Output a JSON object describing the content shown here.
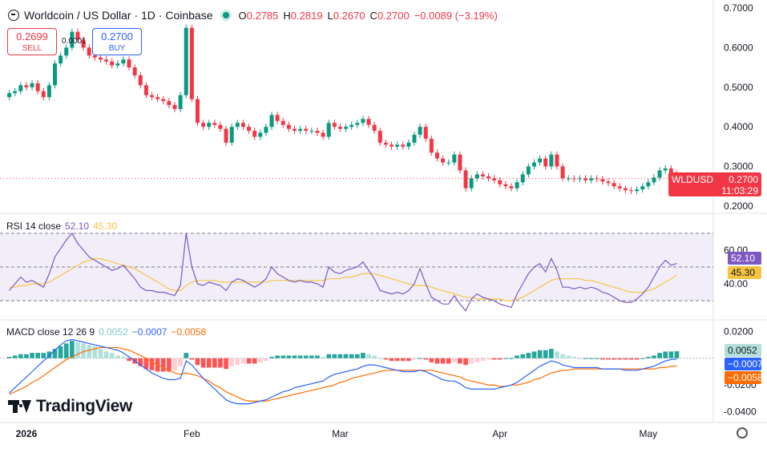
{
  "header": {
    "title": "Worldcoin / US Dollar · 1D · Coinbase",
    "open_label": "O",
    "open": "0.2785",
    "high_label": "H",
    "high": "0.2819",
    "low_label": "L",
    "low": "0.2670",
    "close_label": "C",
    "close": "0.2700",
    "change": "−0.0089 (−3.19%)"
  },
  "trade": {
    "sell_price": "0.2699",
    "sell_label": "SELL",
    "spread": "0.0001",
    "buy_price": "0.2700",
    "buy_label": "BUY"
  },
  "price_scale": {
    "symbol": "WLDUSD",
    "last_price": "0.2700",
    "countdown": "11:03:29"
  },
  "rsi_legend": {
    "name": "RSI 14 close",
    "value": "52.10",
    "ma": "45.30"
  },
  "macd_legend": {
    "name": "MACD close 12 26 9",
    "hist": "0.0052",
    "macd": "−0.0007",
    "signal": "−0.0058"
  },
  "branding": {
    "name": "TradingView"
  },
  "colors": {
    "up": "#089981",
    "down": "#f23645",
    "rsi": "#7e57c2",
    "rsi_ma": "#f5c542",
    "macd": "#2962ff",
    "signal": "#ff6d00"
  },
  "icons": {
    "settings": "gear-icon"
  },
  "chart_data": [
    {
      "type": "candlestick",
      "title": "Worldcoin / US Dollar · 1D · Coinbase",
      "ylim": [
        0.2,
        0.7
      ],
      "y_ticks": [
        "0.7000",
        "0.6000",
        "0.5000",
        "0.4000",
        "0.3000",
        "0.2000"
      ],
      "x_ticks": [
        "2026",
        "Feb",
        "Mar",
        "Apr",
        "May"
      ],
      "close": [
        0.485,
        0.49,
        0.505,
        0.5,
        0.51,
        0.49,
        0.475,
        0.505,
        0.56,
        0.58,
        0.6,
        0.64,
        0.62,
        0.6,
        0.58,
        0.575,
        0.57,
        0.565,
        0.555,
        0.56,
        0.57,
        0.55,
        0.53,
        0.505,
        0.48,
        0.475,
        0.47,
        0.465,
        0.455,
        0.445,
        0.48,
        0.65,
        0.47,
        0.41,
        0.4,
        0.41,
        0.405,
        0.395,
        0.36,
        0.4,
        0.41,
        0.4,
        0.39,
        0.375,
        0.385,
        0.4,
        0.43,
        0.415,
        0.405,
        0.395,
        0.39,
        0.395,
        0.39,
        0.39,
        0.385,
        0.375,
        0.41,
        0.4,
        0.395,
        0.4,
        0.405,
        0.41,
        0.42,
        0.405,
        0.39,
        0.36,
        0.355,
        0.35,
        0.355,
        0.35,
        0.36,
        0.38,
        0.4,
        0.37,
        0.335,
        0.32,
        0.31,
        0.31,
        0.33,
        0.29,
        0.245,
        0.27,
        0.28,
        0.275,
        0.27,
        0.265,
        0.255,
        0.25,
        0.245,
        0.26,
        0.28,
        0.3,
        0.31,
        0.32,
        0.3,
        0.33,
        0.3,
        0.27,
        0.27,
        0.268,
        0.27,
        0.265,
        0.27,
        0.268,
        0.262,
        0.258,
        0.25,
        0.245,
        0.24,
        0.238,
        0.242,
        0.25,
        0.26,
        0.272,
        0.29,
        0.295,
        0.282,
        0.27
      ]
    },
    {
      "type": "line",
      "title": "RSI 14 close",
      "ylim": [
        20,
        80
      ],
      "y_ticks": [
        "60.00",
        "40.00"
      ],
      "series": [
        {
          "name": "RSI",
          "values": [
            36,
            40,
            44,
            41,
            42,
            40,
            38,
            46,
            56,
            61,
            66,
            70,
            64,
            60,
            56,
            54,
            52,
            50,
            48,
            49,
            51,
            47,
            43,
            38,
            36,
            36,
            35,
            35,
            34,
            33,
            39,
            70,
            50,
            40,
            39,
            41,
            40,
            39,
            36,
            41,
            43,
            42,
            40,
            38,
            40,
            43,
            50,
            46,
            44,
            42,
            41,
            42,
            41,
            41,
            40,
            38,
            50,
            47,
            46,
            48,
            49,
            50,
            53,
            48,
            43,
            36,
            35,
            34,
            35,
            34,
            36,
            40,
            49,
            40,
            32,
            30,
            28,
            28,
            33,
            28,
            24,
            31,
            34,
            32,
            31,
            30,
            28,
            27,
            26,
            34,
            40,
            46,
            50,
            52,
            47,
            55,
            48,
            38,
            38,
            37,
            38,
            37,
            38,
            37,
            35,
            34,
            32,
            30,
            29,
            29,
            31,
            34,
            38,
            44,
            50,
            54,
            51,
            52.1
          ]
        },
        {
          "name": "RSI-based MA",
          "values": [
            38,
            38,
            39,
            39,
            40,
            40,
            40,
            41,
            43,
            45,
            47,
            49,
            51,
            53,
            54,
            55,
            55,
            54,
            53,
            52,
            51,
            50,
            49,
            47,
            45,
            43,
            41,
            39,
            37,
            36,
            36,
            39,
            41,
            42,
            42,
            42,
            42,
            41,
            41,
            41,
            41,
            41,
            41,
            41,
            41,
            41,
            42,
            42,
            42,
            42,
            42,
            42,
            42,
            42,
            42,
            42,
            43,
            43,
            43,
            44,
            44,
            45,
            46,
            46,
            46,
            45,
            44,
            43,
            42,
            41,
            40,
            39,
            39,
            39,
            38,
            37,
            36,
            35,
            34,
            33,
            32,
            32,
            31,
            31,
            31,
            31,
            31,
            30,
            30,
            31,
            32,
            34,
            36,
            38,
            40,
            42,
            43,
            43,
            43,
            43,
            43,
            42,
            42,
            41,
            40,
            39,
            38,
            37,
            36,
            35,
            35,
            35,
            36,
            37,
            39,
            41,
            43,
            45.3
          ]
        }
      ],
      "bands": [
        70,
        50,
        30
      ]
    },
    {
      "type": "bar",
      "title": "MACD close 12 26 9",
      "ylim": [
        -0.045,
        0.025
      ],
      "y_ticks": [
        "0.0200",
        "-0.0200",
        "-0.0400"
      ],
      "series": [
        {
          "name": "Histogram",
          "values": [
            0.001,
            0.002,
            0.003,
            0.003,
            0.004,
            0.004,
            0.004,
            0.005,
            0.007,
            0.009,
            0.011,
            0.013,
            0.012,
            0.011,
            0.01,
            0.009,
            0.007,
            0.005,
            0.004,
            0.002,
            0.001,
            -0.002,
            -0.004,
            -0.006,
            -0.008,
            -0.009,
            -0.01,
            -0.01,
            -0.01,
            -0.009,
            -0.006,
            0.004,
            -0.001,
            -0.005,
            -0.007,
            -0.007,
            -0.007,
            -0.007,
            -0.008,
            -0.006,
            -0.005,
            -0.004,
            -0.004,
            -0.004,
            -0.003,
            -0.002,
            0.001,
            0.002,
            0.002,
            0.002,
            0.002,
            0.002,
            0.002,
            0.002,
            0.002,
            0.001,
            0.003,
            0.003,
            0.003,
            0.003,
            0.003,
            0.003,
            0.004,
            0.003,
            0.002,
            0.0,
            -0.001,
            -0.002,
            -0.002,
            -0.002,
            -0.002,
            -0.001,
            0.0,
            -0.001,
            -0.003,
            -0.004,
            -0.004,
            -0.004,
            -0.003,
            -0.004,
            -0.005,
            -0.004,
            -0.003,
            -0.002,
            -0.001,
            -0.001,
            -0.001,
            0.0,
            0.0,
            0.002,
            0.003,
            0.004,
            0.005,
            0.006,
            0.006,
            0.007,
            0.005,
            0.003,
            0.002,
            0.001,
            0.0,
            0.0,
            0.0,
            0.0,
            -0.001,
            -0.001,
            -0.001,
            -0.001,
            -0.001,
            -0.001,
            -0.001,
            0.0,
            0.001,
            0.002,
            0.004,
            0.005,
            0.005,
            0.0052
          ]
        },
        {
          "name": "MACD",
          "values": [
            -0.026,
            -0.022,
            -0.018,
            -0.014,
            -0.01,
            -0.006,
            -0.002,
            0.002,
            0.006,
            0.01,
            0.013,
            0.014,
            0.013,
            0.012,
            0.011,
            0.01,
            0.009,
            0.008,
            0.007,
            0.006,
            0.004,
            0.001,
            -0.002,
            -0.005,
            -0.008,
            -0.011,
            -0.013,
            -0.015,
            -0.016,
            -0.016,
            -0.015,
            -0.002,
            -0.005,
            -0.01,
            -0.015,
            -0.019,
            -0.023,
            -0.027,
            -0.031,
            -0.033,
            -0.034,
            -0.034,
            -0.034,
            -0.033,
            -0.032,
            -0.031,
            -0.029,
            -0.027,
            -0.025,
            -0.024,
            -0.022,
            -0.021,
            -0.02,
            -0.019,
            -0.018,
            -0.017,
            -0.014,
            -0.012,
            -0.011,
            -0.01,
            -0.009,
            -0.008,
            -0.006,
            -0.005,
            -0.005,
            -0.006,
            -0.007,
            -0.008,
            -0.009,
            -0.01,
            -0.01,
            -0.01,
            -0.009,
            -0.01,
            -0.012,
            -0.014,
            -0.016,
            -0.017,
            -0.017,
            -0.019,
            -0.022,
            -0.023,
            -0.023,
            -0.023,
            -0.023,
            -0.023,
            -0.022,
            -0.021,
            -0.02,
            -0.018,
            -0.015,
            -0.012,
            -0.009,
            -0.006,
            -0.004,
            -0.002,
            -0.003,
            -0.005,
            -0.006,
            -0.007,
            -0.007,
            -0.007,
            -0.007,
            -0.007,
            -0.008,
            -0.008,
            -0.008,
            -0.008,
            -0.009,
            -0.009,
            -0.009,
            -0.008,
            -0.007,
            -0.006,
            -0.004,
            -0.002,
            -0.001,
            -0.0007
          ]
        },
        {
          "name": "Signal",
          "values": [
            -0.027,
            -0.025,
            -0.023,
            -0.021,
            -0.018,
            -0.016,
            -0.013,
            -0.01,
            -0.007,
            -0.004,
            -0.001,
            0.001,
            0.003,
            0.005,
            0.006,
            0.007,
            0.008,
            0.008,
            0.008,
            0.008,
            0.007,
            0.006,
            0.004,
            0.002,
            0.0,
            -0.003,
            -0.005,
            -0.007,
            -0.009,
            -0.011,
            -0.012,
            -0.011,
            -0.012,
            -0.013,
            -0.015,
            -0.017,
            -0.02,
            -0.022,
            -0.025,
            -0.027,
            -0.029,
            -0.031,
            -0.032,
            -0.032,
            -0.032,
            -0.032,
            -0.031,
            -0.03,
            -0.029,
            -0.028,
            -0.027,
            -0.026,
            -0.025,
            -0.024,
            -0.023,
            -0.022,
            -0.021,
            -0.02,
            -0.018,
            -0.017,
            -0.015,
            -0.014,
            -0.013,
            -0.012,
            -0.011,
            -0.01,
            -0.009,
            -0.009,
            -0.009,
            -0.009,
            -0.009,
            -0.009,
            -0.009,
            -0.009,
            -0.009,
            -0.01,
            -0.011,
            -0.012,
            -0.013,
            -0.014,
            -0.016,
            -0.017,
            -0.018,
            -0.019,
            -0.02,
            -0.02,
            -0.021,
            -0.021,
            -0.02,
            -0.02,
            -0.019,
            -0.018,
            -0.016,
            -0.015,
            -0.013,
            -0.011,
            -0.01,
            -0.009,
            -0.009,
            -0.008,
            -0.008,
            -0.008,
            -0.008,
            -0.008,
            -0.008,
            -0.008,
            -0.008,
            -0.008,
            -0.008,
            -0.008,
            -0.008,
            -0.008,
            -0.008,
            -0.008,
            -0.007,
            -0.007,
            -0.006,
            -0.0058
          ]
        }
      ],
      "hist_colors": [
        "#26a69a",
        "#b2dfdb",
        "#ff5252",
        "#ffcdd2"
      ]
    }
  ]
}
